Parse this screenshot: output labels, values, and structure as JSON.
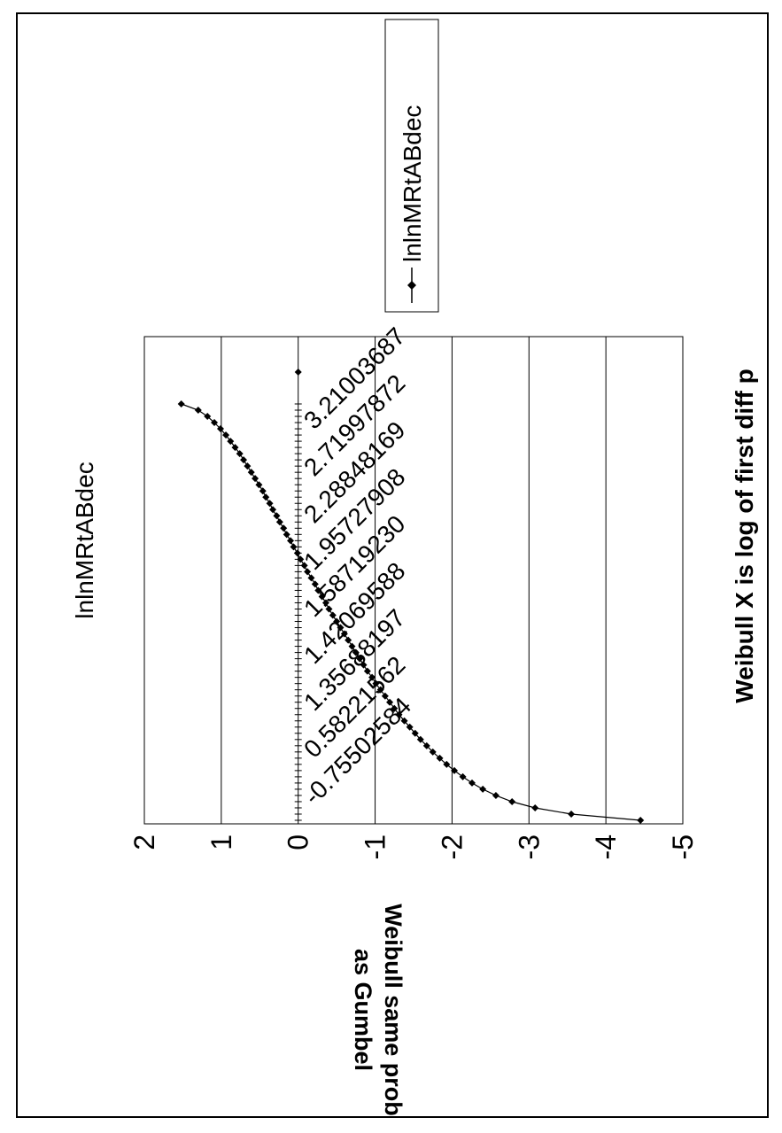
{
  "chart_data": {
    "type": "line",
    "title": "lnlnMRtABdec",
    "xlabel": "Weibull X is log of first diff p",
    "ylabel": "Weibull same prob as Gumbel",
    "ylim": [
      -5,
      2
    ],
    "yticks": [
      "2",
      "1",
      "0",
      "-1",
      "-2",
      "-3",
      "-4",
      "-5"
    ],
    "xtick_labels": [
      "-0.75502584",
      "0.58221562",
      "1.35688197",
      "1.42069588",
      "1.58719230",
      "1.95727908",
      "2.28848169",
      "2.71997872",
      "3.21003687"
    ],
    "grid": "horizontal",
    "legend_position": "right",
    "series": [
      {
        "name": "lnlnMRtABdec",
        "color": "#000000",
        "marker": "diamond",
        "y": [
          -4.45,
          -3.55,
          -3.08,
          -2.78,
          -2.57,
          -2.4,
          -2.26,
          -2.14,
          -2.03,
          -1.93,
          -1.84,
          -1.75,
          -1.67,
          -1.59,
          -1.52,
          -1.45,
          -1.38,
          -1.31,
          -1.25,
          -1.19,
          -1.13,
          -1.07,
          -1.01,
          -0.96,
          -0.9,
          -0.85,
          -0.8,
          -0.75,
          -0.7,
          -0.65,
          -0.6,
          -0.55,
          -0.5,
          -0.45,
          -0.4,
          -0.36,
          -0.31,
          -0.26,
          -0.22,
          -0.17,
          -0.12,
          -0.08,
          -0.03,
          0.01,
          0.06,
          0.1,
          0.15,
          0.19,
          0.24,
          0.28,
          0.33,
          0.37,
          0.42,
          0.46,
          0.51,
          0.56,
          0.61,
          0.66,
          0.71,
          0.76,
          0.82,
          0.88,
          0.94,
          1.01,
          1.09,
          1.18,
          1.3,
          1.52
        ]
      },
      {
        "name": "",
        "color": "#000000",
        "marker": "diamond",
        "points": [
          {
            "x_index": 66,
            "y": 0.0
          }
        ]
      }
    ]
  }
}
